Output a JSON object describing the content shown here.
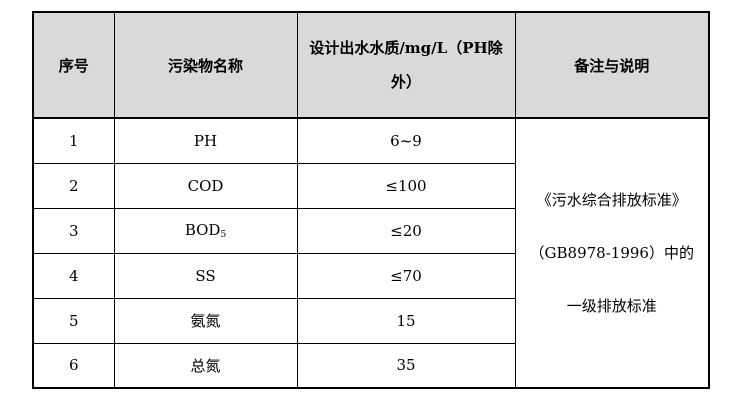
{
  "header": {
    "col_no": "序号",
    "col_name": "污染物名称",
    "col_value": "设计出水水质/mg/L（PH除外）",
    "col_note": "备注与说明"
  },
  "rows": [
    {
      "no": "1",
      "name": "PH",
      "value": "6~9"
    },
    {
      "no": "2",
      "name": "COD",
      "value": "≤100"
    },
    {
      "no": "3",
      "name": "BOD",
      "name_sub": "5",
      "value": "≤20"
    },
    {
      "no": "4",
      "name": "SS",
      "value": "≤70"
    },
    {
      "no": "5",
      "name": "氨氮",
      "value": "15"
    },
    {
      "no": "6",
      "name": "总氮",
      "value": "35"
    }
  ],
  "remark": {
    "line1": "《污水综合排放标准》",
    "line2": "（GB8978-1996）中的",
    "line3": "一级排放标准"
  }
}
